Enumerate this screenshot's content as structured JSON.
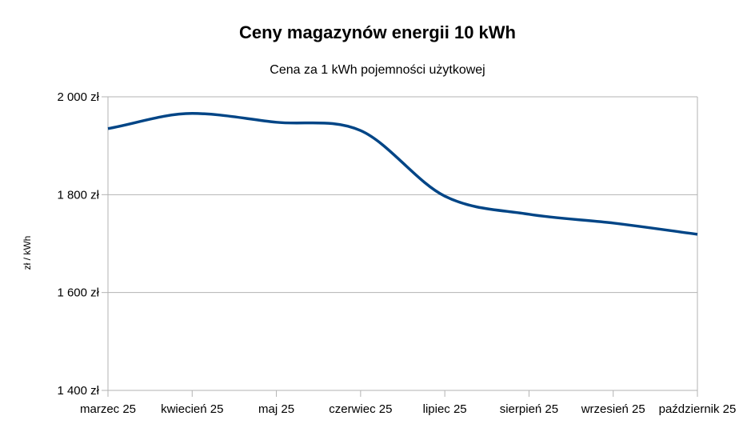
{
  "chart_data": {
    "type": "line",
    "title": "Ceny magazynów energii 10 kWh",
    "subtitle": "Cena za 1 kWh pojemności użytkowej",
    "xlabel": "",
    "ylabel": "zł / kWh",
    "categories": [
      "marzec 25",
      "kwiecień 25",
      "maj 25",
      "czerwiec 25",
      "lipiec 25",
      "sierpień 25",
      "wrzesień 25",
      "październik 25"
    ],
    "series": [
      {
        "values": [
          1935,
          1966,
          1948,
          1931,
          1797,
          1760,
          1742,
          1719
        ],
        "color": "#004586"
      }
    ],
    "ylim": [
      1400,
      2000
    ],
    "yticks": [
      1400,
      1600,
      1800,
      2000
    ],
    "ytick_labels": [
      "1 400 zł",
      "1 600 zł",
      "1 800 zł",
      "2 000 zł"
    ],
    "grid": "horizontal",
    "legend": "none"
  }
}
